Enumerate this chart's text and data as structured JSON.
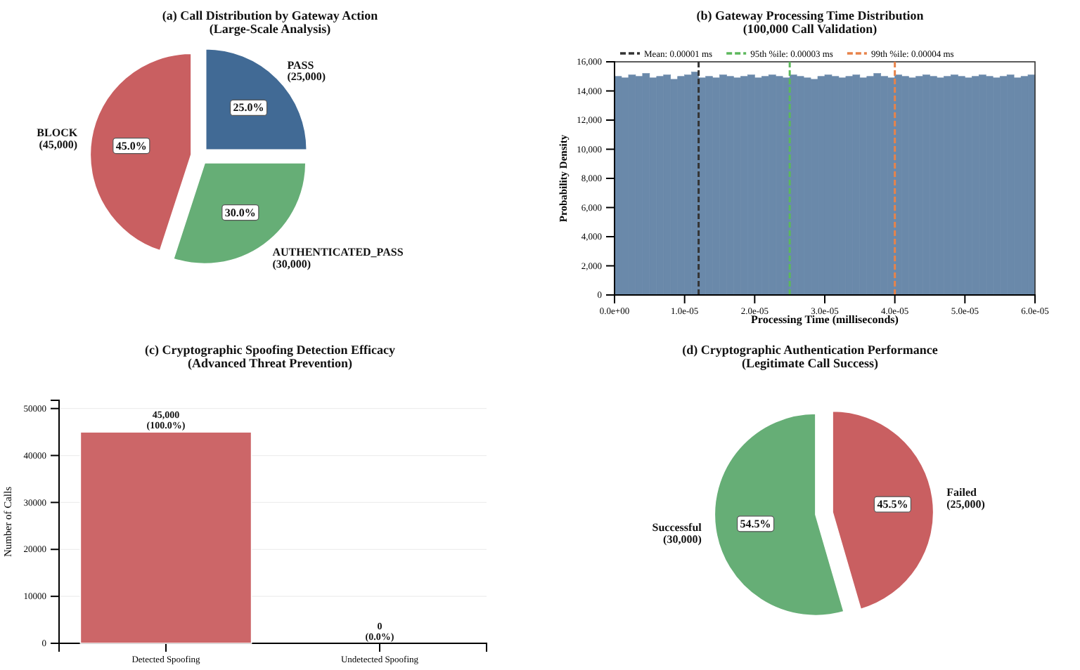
{
  "chart_data": [
    {
      "type": "pie",
      "title": "(a) Call Distribution by Gateway Action\n(Large-Scale Analysis)",
      "categories": [
        "PASS\n(25,000)",
        "AUTHENTICATED_PASS\n(30,000)",
        "BLOCK\n(45,000)"
      ],
      "values": [
        25,
        30,
        45
      ],
      "colors": [
        "#416a95",
        "#66ae76",
        "#c95f61"
      ],
      "value_labels": [
        "25.0%",
        "30.0%",
        "45.0%"
      ]
    },
    {
      "type": "histogram",
      "title": "(b) Gateway Processing Time Distribution\n(100,000 Call Validation)",
      "xlabel": "Processing Time (milliseconds)",
      "ylabel": "Probability Density",
      "color": "#6a89aa",
      "bins": [
        0,
        1e-06,
        2e-06,
        3e-06,
        4e-06,
        5e-06,
        6e-06,
        7e-06,
        8e-06,
        9e-06,
        1e-05,
        1.1e-05,
        1.2e-05,
        1.3e-05,
        1.4e-05,
        1.5e-05,
        1.6e-05,
        1.7e-05,
        1.8e-05,
        1.9e-05,
        2e-05,
        2.1e-05,
        2.2e-05,
        2.3e-05,
        2.4e-05,
        2.5e-05,
        2.6e-05,
        2.7e-05,
        2.8e-05,
        2.9e-05,
        3e-05,
        3.1e-05,
        3.2e-05,
        3.3e-05,
        3.4e-05,
        3.5e-05,
        3.6e-05,
        3.7e-05,
        3.8e-05,
        3.9e-05,
        4e-05,
        4.1e-05,
        4.2e-05,
        4.3e-05,
        4.4e-05,
        4.5e-05,
        4.6e-05,
        4.7e-05,
        4.8e-05,
        4.9e-05,
        5e-05,
        5.1e-05,
        5.2e-05,
        5.3e-05,
        5.4e-05,
        5.5e-05,
        5.6e-05,
        5.7e-05,
        5.8e-05,
        5.9e-05,
        6e-05
      ],
      "values": [
        15000,
        14900,
        15100,
        15000,
        15200,
        14900,
        15000,
        15100,
        14800,
        15000,
        15100,
        15300,
        14900,
        15000,
        14900,
        15100,
        15000,
        14900,
        15000,
        15100,
        14900,
        15000,
        15100,
        15000,
        14900,
        15100,
        15000,
        14900,
        14800,
        15000,
        15100,
        15000,
        14900,
        15000,
        15100,
        14900,
        15000,
        15200,
        15000,
        14900,
        15100,
        15000,
        14900,
        15000,
        15100,
        15000,
        14900,
        15000,
        15100,
        15000,
        14900,
        15000,
        15100,
        15000,
        14900,
        15000,
        15100,
        14900,
        15000,
        15100
      ],
      "xlim": [
        0,
        6e-05
      ],
      "ylim": [
        0,
        16000
      ],
      "xticks": [
        {
          "value": 0,
          "label": "0.0e+00"
        },
        {
          "value": 1e-05,
          "label": "1.0e-05"
        },
        {
          "value": 2e-05,
          "label": "2.0e-05"
        },
        {
          "value": 3e-05,
          "label": "3.0e-05"
        },
        {
          "value": 4e-05,
          "label": "4.0e-05"
        },
        {
          "value": 5e-05,
          "label": "5.0e-05"
        },
        {
          "value": 6e-05,
          "label": "6.0e-05"
        }
      ],
      "yticks": [
        0,
        {
          "value": 2000,
          "label": "2,000"
        },
        {
          "value": 4000,
          "label": "4,000"
        },
        {
          "value": 6000,
          "label": "6,000"
        },
        {
          "value": 8000,
          "label": "8,000"
        },
        {
          "value": 10000,
          "label": "10,000"
        },
        {
          "value": 12000,
          "label": "12,000"
        },
        {
          "value": 14000,
          "label": "14,000"
        },
        {
          "value": 16000,
          "label": "16,000"
        }
      ],
      "ref_lines": [
        {
          "axis": "x",
          "value": 1.2e-05,
          "label": "Mean: 0.00001 ms",
          "color": "#333333",
          "line_style": "dashed"
        },
        {
          "axis": "x",
          "value": 2.5e-05,
          "label": "95th %ile: 0.00003 ms",
          "color": "#5cb85c",
          "line_style": "dashed"
        },
        {
          "axis": "x",
          "value": 4e-05,
          "label": "99th %ile: 0.00004 ms",
          "color": "#e8834a",
          "line_style": "dashed"
        }
      ],
      "legend": "top"
    },
    {
      "type": "bar",
      "title": "(c) Cryptographic Spoofing Detection Efficacy\n(Advanced Threat Prevention)",
      "ylabel": "Number of Calls",
      "categories": [
        "Detected Spoofing",
        "Undetected Spoofing"
      ],
      "values": [
        45000,
        0
      ],
      "color": "#cc6668",
      "value_labels": [
        "45,000\n(100.0%)",
        "0\n(0.0%)"
      ],
      "ylim": [
        0,
        51750
      ],
      "yticks": [
        0,
        10000,
        20000,
        30000,
        40000,
        50000
      ],
      "grid": "y"
    },
    {
      "type": "pie",
      "title": "(d) Cryptographic Authentication Performance\n(Legitimate Call Success)",
      "categories": [
        "Failed\n(25,000)",
        "Successful\n(30,000)"
      ],
      "values": [
        45.5,
        54.5
      ],
      "colors": [
        "#c95f61",
        "#66ae76"
      ],
      "value_labels": [
        "45.5%",
        "54.5%"
      ]
    }
  ]
}
